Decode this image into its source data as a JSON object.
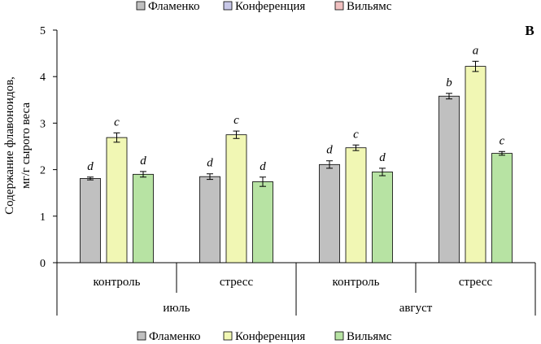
{
  "chart_data": {
    "type": "bar",
    "panel_label": "В",
    "ylabel_lines": [
      "Содержание флавоноидов,",
      "мг/г сырого веса"
    ],
    "ylim": [
      0,
      5
    ],
    "yticks": [
      0,
      1,
      2,
      3,
      4,
      5
    ],
    "grid": false,
    "categories": [
      "контроль",
      "стресс",
      "контроль",
      "стресс"
    ],
    "groups": [
      {
        "label": "июль",
        "categories": [
          0,
          1
        ]
      },
      {
        "label": "август",
        "categories": [
          2,
          3
        ]
      }
    ],
    "series": [
      {
        "name": "Фламенко",
        "color": "#c0c0c0",
        "values": [
          1.81,
          1.85,
          2.11,
          3.58
        ],
        "errors": [
          0.03,
          0.06,
          0.08,
          0.06
        ],
        "letters": [
          "d",
          "d",
          "d",
          "b"
        ]
      },
      {
        "name": "Конференция",
        "color": "#f1f7b4",
        "values": [
          2.69,
          2.75,
          2.47,
          4.22
        ],
        "errors": [
          0.1,
          0.08,
          0.06,
          0.11
        ],
        "letters": [
          "c",
          "c",
          "c",
          "a"
        ]
      },
      {
        "name": "Вильямс",
        "color": "#b7e3a3",
        "values": [
          1.9,
          1.74,
          1.95,
          2.35
        ],
        "errors": [
          0.06,
          0.1,
          0.08,
          0.04
        ],
        "letters": [
          "d",
          "d",
          "d",
          "c"
        ]
      }
    ],
    "legend_top": [
      {
        "name": "Фламенко",
        "color": "#c0c0c0"
      },
      {
        "name": "Конференция",
        "color": "#c8c8e8"
      },
      {
        "name": "Вильямс",
        "color": "#f0c0c0"
      }
    ],
    "legend_bottom": [
      {
        "name": "Фламенко",
        "color": "#c0c0c0"
      },
      {
        "name": "Конференция",
        "color": "#f1f7b4"
      },
      {
        "name": "Вильямс",
        "color": "#b7e3a3"
      }
    ]
  }
}
